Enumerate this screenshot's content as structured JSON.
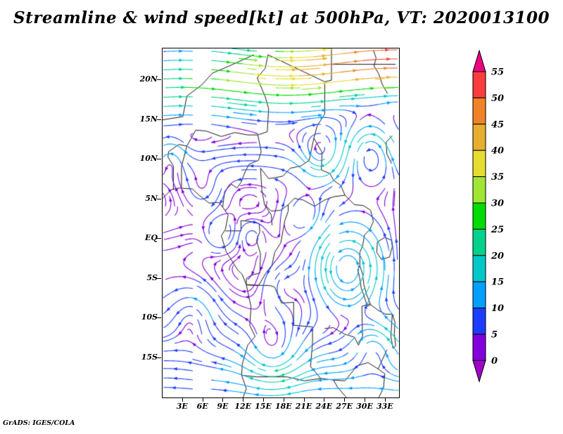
{
  "title": "Streamline & wind speed[kt] at 500hPa, VT: 2020013100",
  "attribution": "GrADS: IGES/COLA",
  "chart_data": {
    "type": "streamline",
    "title": "Streamline & wind speed[kt] at 500hPa, VT: 2020013100",
    "field": "wind",
    "units": "kt",
    "pressure_level": "500hPa",
    "valid_time": "2020013100",
    "lon_range": [
      0,
      35
    ],
    "lat_range": [
      -20,
      24
    ],
    "lat_ticks": [
      {
        "value": 20,
        "label": "20N"
      },
      {
        "value": 15,
        "label": "15N"
      },
      {
        "value": 10,
        "label": "10N"
      },
      {
        "value": 5,
        "label": "5N"
      },
      {
        "value": 0,
        "label": "EQ"
      },
      {
        "value": -5,
        "label": "5S"
      },
      {
        "value": -10,
        "label": "10S"
      },
      {
        "value": -15,
        "label": "15S"
      }
    ],
    "lon_ticks": [
      {
        "value": 3,
        "label": "3E"
      },
      {
        "value": 6,
        "label": "6E"
      },
      {
        "value": 9,
        "label": "9E"
      },
      {
        "value": 12,
        "label": "12E"
      },
      {
        "value": 15,
        "label": "15E"
      },
      {
        "value": 18,
        "label": "18E"
      },
      {
        "value": 21,
        "label": "21E"
      },
      {
        "value": 24,
        "label": "24E"
      },
      {
        "value": 27,
        "label": "27E"
      },
      {
        "value": 30,
        "label": "30E"
      },
      {
        "value": 33,
        "label": "33E"
      }
    ],
    "colorbar": {
      "orientation": "vertical",
      "levels": [
        0,
        5,
        10,
        15,
        20,
        25,
        30,
        35,
        40,
        45,
        50,
        55
      ],
      "colors": [
        "#a000c8",
        "#8200dc",
        "#1e3cff",
        "#00a0ff",
        "#00c8c8",
        "#00d28c",
        "#00dc00",
        "#a0e632",
        "#e6dc32",
        "#e6af2d",
        "#f08228",
        "#fa3c3c",
        "#f00082"
      ]
    },
    "flow_features": {
      "jet": {
        "lat_west": 19,
        "lat_east": 23,
        "width": 5,
        "max_speed": 55,
        "west_frac": 0.4
      },
      "north_band": {
        "lat": 10,
        "speed": 10,
        "width": 3.2
      },
      "south_band": {
        "lat": -13,
        "speed": 8,
        "width": 6
      },
      "south_jet": {
        "lat": -19,
        "width": 4,
        "max_speed": 14
      },
      "vortices": [
        {
          "x": 30.8,
          "y": 11.3,
          "s": 14,
          "r": 2.6
        },
        {
          "x": 23.5,
          "y": 10.2,
          "s": -10,
          "r": 2.2
        },
        {
          "x": 8.6,
          "y": 0.6,
          "s": 7,
          "r": 1.4
        },
        {
          "x": 13.2,
          "y": 0.4,
          "s": -6,
          "r": 1.2
        },
        {
          "x": 27.5,
          "y": -3.8,
          "s": 17,
          "r": 3.6
        },
        {
          "x": 4.5,
          "y": -9.5,
          "s": 7,
          "r": 2.4
        },
        {
          "x": 16.5,
          "y": -14.5,
          "s": -9,
          "r": 2.8
        },
        {
          "x": 1.2,
          "y": 10.4,
          "s": 8,
          "r": 1.6
        },
        {
          "x": 31.5,
          "y": -13.5,
          "s": 11,
          "r": 2.4
        },
        {
          "x": 21,
          "y": 3,
          "s": -7,
          "r": 2
        },
        {
          "x": 6,
          "y": 6.5,
          "s": -6,
          "r": 1.8
        },
        {
          "x": 18,
          "y": -6,
          "s": 6,
          "r": 2
        }
      ]
    },
    "map_outlines": [
      [
        [
          0,
          5.1
        ],
        [
          1.3,
          6.2
        ],
        [
          2.4,
          6.4
        ],
        [
          4.4,
          6.3
        ],
        [
          5.4,
          5.5
        ],
        [
          6.9,
          4.5
        ],
        [
          8.3,
          4.6
        ],
        [
          8.9,
          4.0
        ],
        [
          9.7,
          3.0
        ],
        [
          9.3,
          1.2
        ],
        [
          8.7,
          0.4
        ],
        [
          9.4,
          -1.6
        ],
        [
          11.1,
          -3.9
        ],
        [
          11.8,
          -4.5
        ],
        [
          12.4,
          -5.8
        ],
        [
          13.1,
          -8.6
        ],
        [
          12.9,
          -10.9
        ],
        [
          13.7,
          -12.3
        ],
        [
          12.6,
          -13.4
        ],
        [
          11.8,
          -15.8
        ],
        [
          11.7,
          -17.2
        ],
        [
          12.4,
          -18.9
        ],
        [
          11.9,
          -20
        ]
      ],
      [
        [
          2.8,
          9.1
        ],
        [
          3.6,
          11.7
        ],
        [
          4.9,
          13.7
        ],
        [
          6.4,
          13.6
        ],
        [
          8.7,
          12.9
        ],
        [
          10.7,
          13.4
        ],
        [
          12.6,
          13.1
        ],
        [
          14.1,
          13.1
        ]
      ],
      [
        [
          1.6,
          6.2
        ],
        [
          1.6,
          9.2
        ],
        [
          0.8,
          10.3
        ],
        [
          0.9,
          11.0
        ],
        [
          2.4,
          11.9
        ],
        [
          3.6,
          11.7
        ]
      ],
      [
        [
          2.8,
          6.4
        ],
        [
          2.8,
          9.1
        ]
      ],
      [
        [
          14.1,
          13.1
        ],
        [
          15.5,
          13.5
        ],
        [
          15.7,
          16.4
        ],
        [
          15.2,
          17.9
        ],
        [
          14.0,
          20.3
        ],
        [
          15.2,
          21.5
        ],
        [
          15.6,
          23.2
        ],
        [
          24.0,
          19.8
        ],
        [
          24.0,
          15.7
        ],
        [
          22.9,
          14.3
        ],
        [
          22.4,
          12.7
        ],
        [
          23.6,
          10.9
        ],
        [
          23.5,
          8.7
        ]
      ],
      [
        [
          24.0,
          19.8
        ],
        [
          25.0,
          20.0
        ],
        [
          25.0,
          24.0
        ]
      ],
      [
        [
          25.0,
          22.0
        ],
        [
          34.5,
          22.0
        ]
      ],
      [
        [
          8.9,
          4.0
        ],
        [
          9.2,
          6.0
        ],
        [
          10.2,
          6.9
        ],
        [
          11.0,
          6.4
        ],
        [
          11.6,
          7.1
        ],
        [
          12.2,
          8.4
        ],
        [
          12.8,
          9.4
        ],
        [
          14.2,
          9.9
        ],
        [
          14.6,
          11.0
        ],
        [
          14.1,
          13.1
        ]
      ],
      [
        [
          14.5,
          8.9
        ],
        [
          15.7,
          7.6
        ],
        [
          16.6,
          7.7
        ],
        [
          17.8,
          7.9
        ],
        [
          18.9,
          8.9
        ],
        [
          20.5,
          9.2
        ],
        [
          21.7,
          9.9
        ],
        [
          22.4,
          12.7
        ]
      ],
      [
        [
          23.5,
          8.7
        ],
        [
          24.8,
          8.2
        ],
        [
          25.3,
          7.4
        ],
        [
          26.4,
          6.7
        ],
        [
          27.0,
          5.5
        ],
        [
          25.3,
          5.3
        ],
        [
          24.0,
          4.9
        ],
        [
          22.5,
          4.1
        ],
        [
          20.8,
          4.9
        ],
        [
          19.5,
          5.1
        ],
        [
          18.6,
          4.3
        ],
        [
          17.5,
          3.6
        ],
        [
          16.1,
          3.5
        ],
        [
          15.1,
          4.3
        ]
      ],
      [
        [
          14.5,
          8.9
        ],
        [
          14.7,
          6.1
        ],
        [
          15.1,
          4.3
        ],
        [
          16.1,
          3.0
        ],
        [
          16.2,
          1.7
        ]
      ],
      [
        [
          9.3,
          1.0
        ],
        [
          11.6,
          1.0
        ],
        [
          11.6,
          2.3
        ],
        [
          13.0,
          2.2
        ],
        [
          14.3,
          1.9
        ],
        [
          14.4,
          0.9
        ],
        [
          13.9,
          -0.2
        ],
        [
          14.5,
          -1.9
        ],
        [
          14.4,
          -4.3
        ],
        [
          13.1,
          -4.6
        ],
        [
          12.4,
          -5.0
        ],
        [
          12.4,
          -5.8
        ]
      ],
      [
        [
          12.4,
          -5.8
        ],
        [
          14.2,
          -5.9
        ],
        [
          15.3,
          -4.3
        ],
        [
          16.2,
          -3.3
        ],
        [
          16.6,
          -1.7
        ],
        [
          17.5,
          -0.5
        ],
        [
          17.8,
          0.9
        ],
        [
          18.1,
          2.3
        ],
        [
          18.6,
          3.5
        ],
        [
          18.6,
          4.3
        ]
      ],
      [
        [
          12.4,
          -5.8
        ],
        [
          16.0,
          -5.9
        ],
        [
          16.6,
          -6.1
        ],
        [
          17.6,
          -8.1
        ],
        [
          19.4,
          -8.0
        ],
        [
          19.4,
          -10.9
        ],
        [
          22.2,
          -11.1
        ],
        [
          22.2,
          -13.1
        ],
        [
          21.9,
          -16.1
        ],
        [
          23.4,
          -17.6
        ]
      ],
      [
        [
          11.7,
          -17.2
        ],
        [
          13.9,
          -17.4
        ],
        [
          18.4,
          -17.4
        ],
        [
          21.0,
          -17.9
        ],
        [
          23.4,
          -17.6
        ],
        [
          25.3,
          -17.8
        ]
      ],
      [
        [
          25.3,
          -17.8
        ],
        [
          27.0,
          -17.9
        ],
        [
          28.8,
          -16.0
        ],
        [
          30.4,
          -15.6
        ],
        [
          31.9,
          -16.4
        ],
        [
          33.2,
          -14.0
        ]
      ],
      [
        [
          31.9,
          -16.4
        ],
        [
          32.9,
          -17.0
        ],
        [
          32.7,
          -18.8
        ],
        [
          32.0,
          -20.0
        ]
      ],
      [
        [
          25.3,
          -17.8
        ],
        [
          25.9,
          -18.7
        ],
        [
          27.2,
          -20.0
        ]
      ],
      [
        [
          24.0,
          -11.3
        ],
        [
          25.3,
          -11.2
        ],
        [
          26.9,
          -12.0
        ],
        [
          28.4,
          -12.4
        ],
        [
          29.0,
          -13.4
        ],
        [
          29.6,
          -12.3
        ],
        [
          29.5,
          -8.5
        ],
        [
          30.7,
          -8.2
        ]
      ],
      [
        [
          27.0,
          5.5
        ],
        [
          28.4,
          4.3
        ],
        [
          29.7,
          4.2
        ],
        [
          30.8,
          3.6
        ],
        [
          31.2,
          2.2
        ],
        [
          30.7,
          1.2
        ],
        [
          29.9,
          0.5
        ],
        [
          29.6,
          -0.9
        ],
        [
          29.2,
          -1.7
        ],
        [
          29.2,
          -3.4
        ]
      ],
      [
        [
          33.9,
          9.5
        ],
        [
          33.2,
          10.7
        ],
        [
          33.1,
          12.2
        ],
        [
          34.0,
          13.0
        ]
      ],
      [
        [
          31.8,
          -0.4
        ],
        [
          32.9,
          0.2
        ],
        [
          33.9,
          -0.2
        ],
        [
          34.0,
          -1.0
        ],
        [
          33.6,
          -2.3
        ],
        [
          32.4,
          -2.6
        ],
        [
          31.7,
          -1.7
        ],
        [
          31.8,
          -0.4
        ]
      ],
      [
        [
          29.2,
          -3.4
        ],
        [
          29.6,
          -4.4
        ],
        [
          29.8,
          -5.8
        ],
        [
          30.2,
          -7.0
        ],
        [
          30.8,
          -8.3
        ],
        [
          30.3,
          -8.5
        ],
        [
          29.9,
          -7.4
        ],
        [
          29.4,
          -6.2
        ],
        [
          29.2,
          -5.0
        ],
        [
          28.9,
          -3.9
        ],
        [
          29.2,
          -3.4
        ]
      ],
      [
        [
          30.8,
          -8.3
        ],
        [
          31.9,
          -9.0
        ],
        [
          33.0,
          -9.5
        ],
        [
          34.0,
          -9.5
        ]
      ],
      [
        [
          34.0,
          -9.5
        ],
        [
          34.4,
          -10.5
        ],
        [
          34.3,
          -12.0
        ],
        [
          34.5,
          -13.5
        ],
        [
          34.1,
          -13.8
        ],
        [
          33.8,
          -12.3
        ],
        [
          33.9,
          -10.8
        ],
        [
          34.0,
          -9.5
        ]
      ],
      [
        [
          31.2,
          23.8
        ],
        [
          31.6,
          22.8
        ],
        [
          31.3,
          21.8
        ],
        [
          32.0,
          20.8
        ],
        [
          32.5,
          19.5
        ],
        [
          33.3,
          18.3
        ]
      ],
      [
        [
          0,
          15.0
        ],
        [
          3.0,
          15.4
        ],
        [
          3.6,
          18.0
        ],
        [
          5.8,
          19.4
        ],
        [
          7.4,
          20.9
        ],
        [
          9.9,
          21.8
        ],
        [
          13.5,
          23.2
        ]
      ]
    ]
  }
}
